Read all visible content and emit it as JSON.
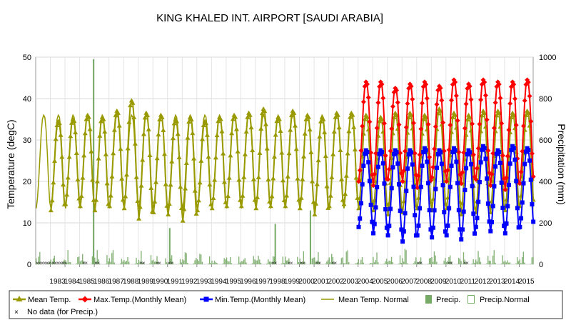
{
  "chart_data": {
    "type": "line",
    "title": "KING KHALED INT. AIRPORT [SAUDI ARABIA]",
    "ylabel_left": "Temperature (degC)",
    "ylabel_right": "Precipitation (mm)",
    "ylim_left": [
      0,
      50
    ],
    "ylim_right": [
      0,
      1000
    ],
    "yticks_left": [
      "0",
      "10",
      "20",
      "30",
      "40",
      "50"
    ],
    "yticks_right": [
      "0",
      "200",
      "400",
      "600",
      "800",
      "1000"
    ],
    "x_start_year": 1982,
    "x_end_year": 2015,
    "year_labels": [
      "1983",
      "1984",
      "1985",
      "1986",
      "1987",
      "1988",
      "1989",
      "1990",
      "1991",
      "1992",
      "1993",
      "1994",
      "1995",
      "1996",
      "1997",
      "1998",
      "1999",
      "2000",
      "2001",
      "2002",
      "2003",
      "2004",
      "2005",
      "2006",
      "2007",
      "2008",
      "2009",
      "2010",
      "2011",
      "2012",
      "2013",
      "2014",
      "2015"
    ],
    "grid": true,
    "legend_position": "bottom",
    "normal_mean_monthly": [
      13.5,
      16.0,
      20.5,
      26.0,
      31.5,
      35.0,
      36.0,
      35.5,
      32.5,
      27.0,
      20.0,
      15.0
    ],
    "normal_precip_monthly": [
      15,
      8,
      30,
      28,
      5,
      0,
      0,
      0,
      0,
      2,
      18,
      15
    ],
    "mean_temp_annual_peak": [
      34.5,
      35.0,
      36.0,
      35.5,
      37.0,
      39.5,
      36.5,
      36.0,
      35.0,
      35.5,
      34.5,
      35.5,
      36.0,
      36.5,
      37.5,
      35.5,
      37.0,
      36.0,
      35.5,
      36.5,
      36.5,
      36.0,
      35.5,
      36.5,
      36.5,
      36.0,
      37.5,
      36.5,
      36.0,
      37.0,
      37.0,
      36.5,
      37.0
    ],
    "mean_temp_annual_trough": [
      13.0,
      14.5,
      14.0,
      13.0,
      14.0,
      13.5,
      11.0,
      12.5,
      12.0,
      10.5,
      13.0,
      13.5,
      14.0,
      14.0,
      13.5,
      14.0,
      14.0,
      13.5,
      12.0,
      14.0,
      14.5,
      13.5,
      13.0,
      12.0,
      12.5,
      13.5,
      13.0,
      13.5,
      12.0,
      12.5,
      12.5,
      13.0,
      14.0
    ],
    "max_temp_peak_2004_2015": [
      44.0,
      44.0,
      42.5,
      43.5,
      44.0,
      43.0,
      44.5,
      43.5,
      44.5,
      44.0,
      44.0,
      44.5
    ],
    "max_temp_trough_2004_2015": [
      20.0,
      19.0,
      20.5,
      20.0,
      18.5,
      21.0,
      20.0,
      19.5,
      20.5,
      19.0,
      18.0,
      19.5
    ],
    "min_temp_peak_2004_2015": [
      27.5,
      27.5,
      27.5,
      27.5,
      28.0,
      27.5,
      28.0,
      27.5,
      28.5,
      27.5,
      28.5,
      28.0
    ],
    "min_temp_trough_2004_2015": [
      9.0,
      7.5,
      7.0,
      5.5,
      7.0,
      6.5,
      7.0,
      6.0,
      9.0,
      8.0,
      7.5,
      9.0
    ],
    "precip_spikes": [
      {
        "year": 1985.9,
        "mm": 990
      },
      {
        "year": 1991.1,
        "mm": 175
      },
      {
        "year": 1998.3,
        "mm": 195
      },
      {
        "year": 2000.7,
        "mm": 260
      }
    ],
    "series": [
      {
        "name": "Mean Temp.",
        "color": "#999900",
        "marker": "triangle"
      },
      {
        "name": "Max.Temp.(Monthly Mean)",
        "color": "#ff0000",
        "marker": "diamond"
      },
      {
        "name": "Min.Temp.(Monthly Mean)",
        "color": "#0000ff",
        "marker": "square"
      },
      {
        "name": "Mean Temp. Normal",
        "color": "#999900",
        "marker": "line"
      },
      {
        "name": "Precip.",
        "color": "#77aa66",
        "marker": "bar"
      },
      {
        "name": "Precip.Normal",
        "color": "#77aa66",
        "marker": "hollow-bar"
      },
      {
        "name": "No data (for Precip.)",
        "color": "#000000",
        "marker": "x"
      }
    ]
  }
}
